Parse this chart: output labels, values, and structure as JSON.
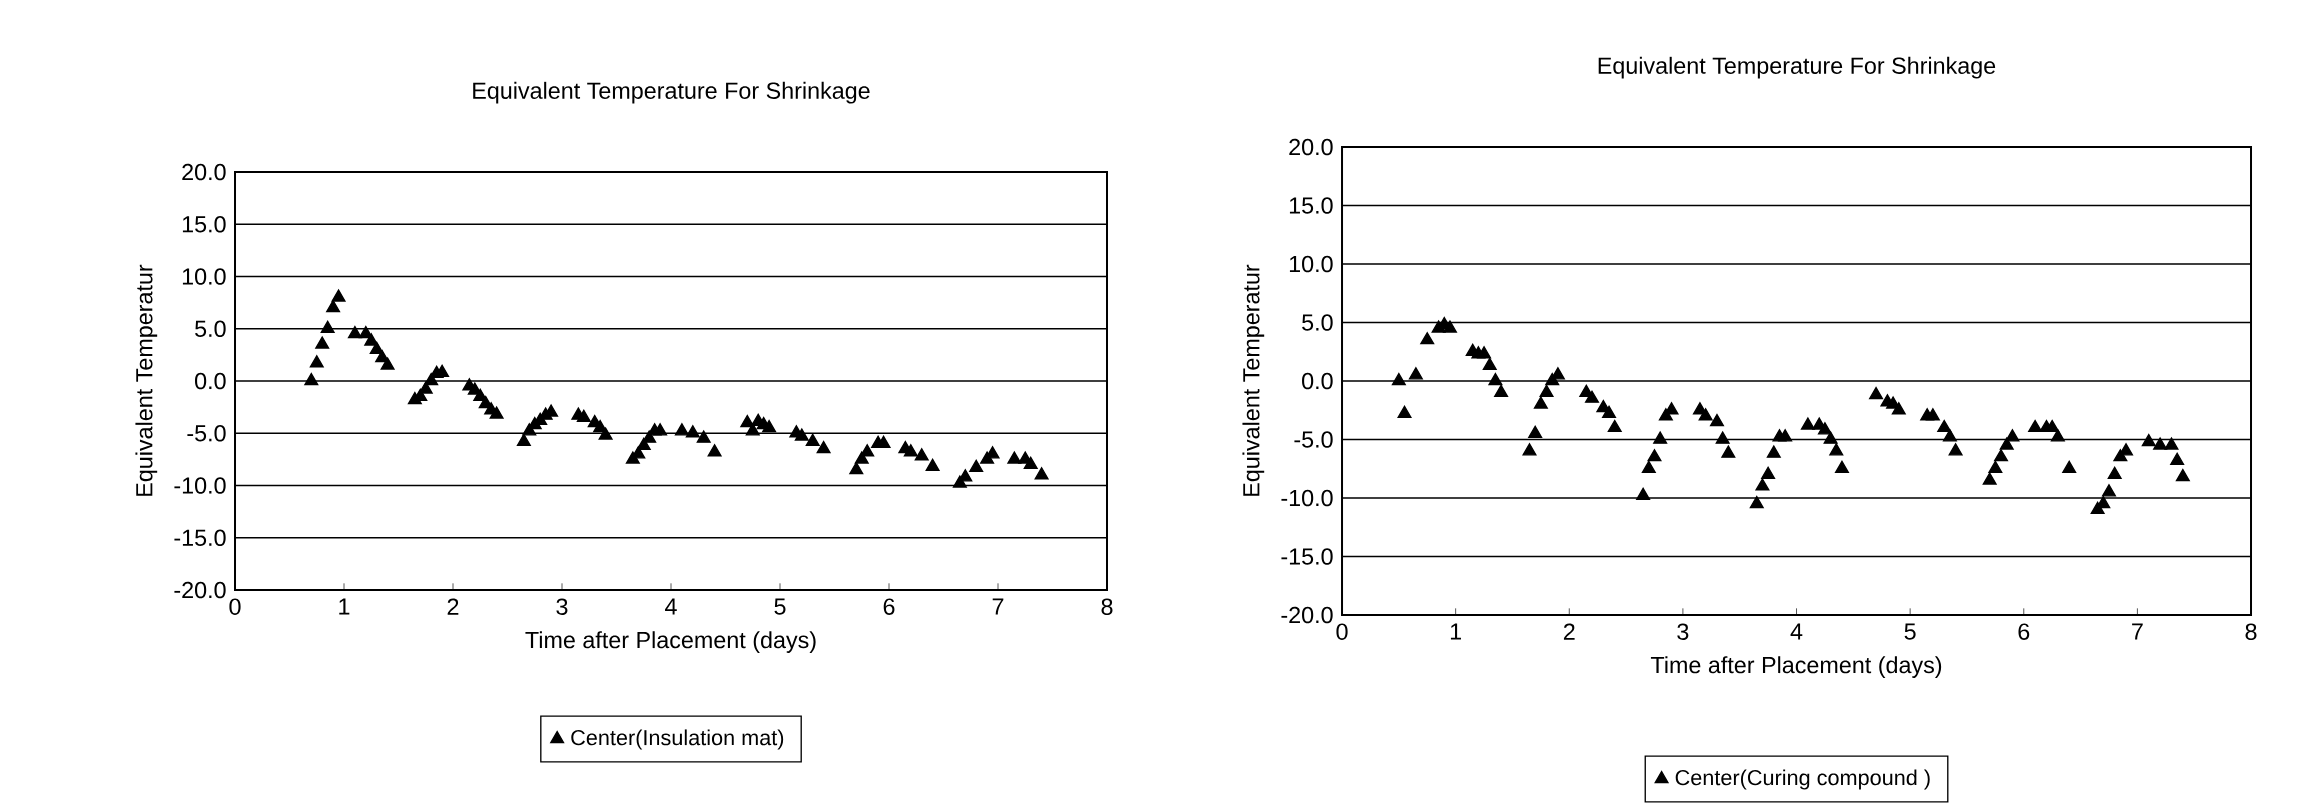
{
  "chart_data": [
    {
      "type": "scatter",
      "title": "Equivalent Temperature For Shrinkage",
      "xlabel": "Time after Placement (days)",
      "ylabel": "Equivalent Temperatur",
      "xlim": [
        0,
        8
      ],
      "xticks": [
        0,
        1,
        2,
        3,
        4,
        5,
        6,
        7,
        8
      ],
      "ylim": [
        -20,
        20
      ],
      "yticks": [
        {
          "value": -20,
          "label": "-20.0"
        },
        {
          "value": -15,
          "label": "-15.0"
        },
        {
          "value": -10,
          "label": "-10.0"
        },
        {
          "value": -5,
          "label": "-5.0"
        },
        {
          "value": 0,
          "label": "0.0"
        },
        {
          "value": 5,
          "label": "5.0"
        },
        {
          "value": 10,
          "label": "10.0"
        },
        {
          "value": 15,
          "label": "15.0"
        },
        {
          "value": 20,
          "label": "20.0"
        }
      ],
      "grid": "y",
      "legend": "bottom",
      "marker": "triangle",
      "series": [
        {
          "name": "Center(Insulation mat)",
          "color": "#000000",
          "x": [
            0.7,
            0.75,
            0.8,
            0.85,
            0.9,
            0.95,
            1.1,
            1.2,
            1.25,
            1.3,
            1.35,
            1.4,
            1.65,
            1.7,
            1.75,
            1.8,
            1.85,
            1.9,
            2.15,
            2.2,
            2.25,
            2.3,
            2.35,
            2.4,
            2.65,
            2.7,
            2.75,
            2.8,
            2.85,
            2.9,
            3.15,
            3.2,
            3.3,
            3.35,
            3.4,
            3.65,
            3.7,
            3.75,
            3.8,
            3.85,
            3.9,
            4.1,
            4.2,
            4.3,
            4.4,
            4.7,
            4.75,
            4.8,
            4.85,
            4.9,
            5.15,
            5.2,
            5.3,
            5.4,
            5.7,
            5.75,
            5.8,
            5.9,
            5.95,
            6.15,
            6.2,
            6.3,
            6.4,
            6.65,
            6.7,
            6.8,
            6.9,
            6.95,
            7.15,
            7.25,
            7.3,
            7.4
          ],
          "values": [
            0.0,
            1.7,
            3.5,
            5.0,
            7.0,
            8.0,
            4.5,
            4.5,
            3.8,
            3.0,
            2.2,
            1.5,
            -1.8,
            -1.5,
            -0.8,
            0.0,
            0.7,
            0.8,
            -0.5,
            -0.9,
            -1.5,
            -2.2,
            -2.8,
            -3.2,
            -5.8,
            -4.8,
            -4.2,
            -3.8,
            -3.3,
            -3.0,
            -3.3,
            -3.5,
            -4.0,
            -4.5,
            -5.2,
            -7.5,
            -7.0,
            -6.2,
            -5.5,
            -4.8,
            -4.8,
            -4.8,
            -5.0,
            -5.5,
            -6.8,
            -4.0,
            -4.8,
            -3.9,
            -4.2,
            -4.5,
            -5.0,
            -5.3,
            -5.8,
            -6.5,
            -8.5,
            -7.5,
            -6.8,
            -6.0,
            -6.0,
            -6.5,
            -6.8,
            -7.2,
            -8.2,
            -9.8,
            -9.2,
            -8.3,
            -7.5,
            -7.0,
            -7.5,
            -7.5,
            -8.0,
            -9.0
          ]
        }
      ]
    },
    {
      "type": "scatter",
      "title": "Equivalent Temperature For Shrinkage",
      "xlabel": "Time after Placement (days)",
      "ylabel": "Equivalent Temperatur",
      "xlim": [
        0,
        8
      ],
      "xticks": [
        0,
        1,
        2,
        3,
        4,
        5,
        6,
        7,
        8
      ],
      "ylim": [
        -20,
        20
      ],
      "yticks": [
        {
          "value": -20,
          "label": "-20.0"
        },
        {
          "value": -15,
          "label": "-15.0"
        },
        {
          "value": -10,
          "label": "-10.0"
        },
        {
          "value": -5,
          "label": "-5.0"
        },
        {
          "value": 0,
          "label": "0.0"
        },
        {
          "value": 5,
          "label": "5.0"
        },
        {
          "value": 10,
          "label": "10.0"
        },
        {
          "value": 15,
          "label": "15.0"
        },
        {
          "value": 20,
          "label": "20.0"
        }
      ],
      "grid": "y",
      "legend": "bottom",
      "marker": "triangle",
      "series": [
        {
          "name": "Center(Curing compound )",
          "color": "#000000",
          "x": [
            0.5,
            0.55,
            0.65,
            0.75,
            0.85,
            0.9,
            0.95,
            1.15,
            1.2,
            1.25,
            1.3,
            1.35,
            1.4,
            1.65,
            1.7,
            1.75,
            1.8,
            1.85,
            1.9,
            2.15,
            2.2,
            2.3,
            2.35,
            2.4,
            2.65,
            2.7,
            2.75,
            2.8,
            2.85,
            2.9,
            3.15,
            3.2,
            3.3,
            3.35,
            3.4,
            3.65,
            3.7,
            3.75,
            3.8,
            3.85,
            3.9,
            4.1,
            4.2,
            4.25,
            4.3,
            4.35,
            4.4,
            4.7,
            4.8,
            4.85,
            4.9,
            5.15,
            5.2,
            5.3,
            5.35,
            5.4,
            5.7,
            5.75,
            5.8,
            5.85,
            5.9,
            6.1,
            6.2,
            6.25,
            6.3,
            6.4,
            6.65,
            6.7,
            6.75,
            6.8,
            6.85,
            6.9,
            7.1,
            7.2,
            7.3,
            7.35,
            7.4
          ],
          "values": [
            0.0,
            -2.8,
            0.5,
            3.5,
            4.5,
            4.8,
            4.5,
            2.5,
            2.3,
            2.3,
            1.3,
            0.0,
            -1.0,
            -6.0,
            -4.5,
            -2.0,
            -1.0,
            0.0,
            0.5,
            -1.0,
            -1.5,
            -2.3,
            -2.8,
            -4.0,
            -9.8,
            -7.5,
            -6.5,
            -5.0,
            -3.0,
            -2.5,
            -2.5,
            -3.0,
            -3.5,
            -5.0,
            -6.2,
            -10.5,
            -9.0,
            -8.0,
            -6.2,
            -4.8,
            -4.8,
            -3.8,
            -3.8,
            -4.2,
            -5.0,
            -6.0,
            -7.5,
            -1.2,
            -1.8,
            -2.0,
            -2.5,
            -3.0,
            -3.0,
            -4.0,
            -4.8,
            -6.0,
            -8.5,
            -7.5,
            -6.5,
            -5.5,
            -4.8,
            -4.0,
            -4.0,
            -4.0,
            -4.8,
            -7.5,
            -11.0,
            -10.5,
            -9.5,
            -8.0,
            -6.5,
            -6.0,
            -5.2,
            -5.5,
            -5.5,
            -6.8,
            -8.2
          ]
        }
      ]
    }
  ]
}
